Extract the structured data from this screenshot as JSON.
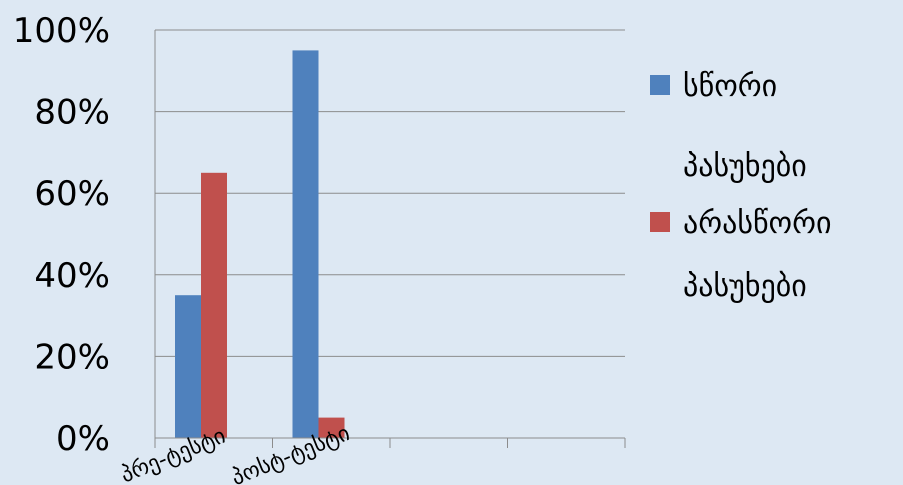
{
  "chart_data": {
    "type": "bar",
    "categories": [
      "პრე-ტესტი",
      "პოსტ-ტესტი",
      "",
      ""
    ],
    "series": [
      {
        "name": "სწორი პასუხები",
        "values": [
          35,
          95,
          null,
          null
        ],
        "color": "#4f81bd"
      },
      {
        "name": "არასწორი პასუხები",
        "values": [
          65,
          5,
          null,
          null
        ],
        "color": "#c0504d"
      }
    ],
    "legend_lines": [
      [
        "სწორი",
        "პასუხები"
      ],
      [
        "არასწორი",
        "პასუხები"
      ]
    ],
    "yticks": [
      "0%",
      "20%",
      "40%",
      "60%",
      "80%",
      "100%"
    ],
    "ylim": [
      0,
      100
    ],
    "grid": true,
    "legend_position": "right"
  }
}
